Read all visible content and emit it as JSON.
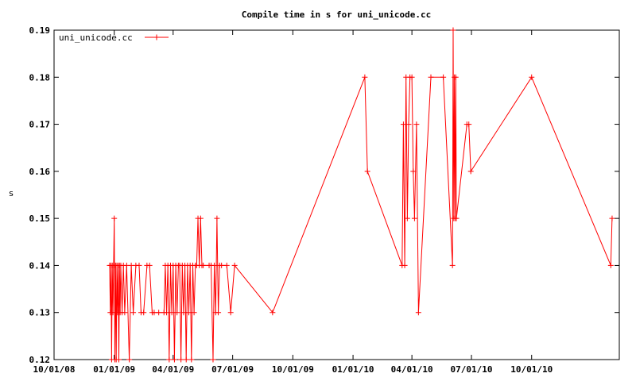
{
  "chart_data": {
    "type": "line",
    "title": "Compile time in s for uni_unicode.cc",
    "xlabel": "",
    "ylabel": "s",
    "x_is_date": true,
    "xlim": [
      "2008-10-01",
      "2011-02-12"
    ],
    "ylim": [
      0.12,
      0.19
    ],
    "yticks": [
      0.12,
      0.13,
      0.14,
      0.15,
      0.16,
      0.17,
      0.18,
      0.19
    ],
    "yticks_labels": [
      "0.12",
      "0.13",
      "0.14",
      "0.15",
      "0.16",
      "0.17",
      "0.18",
      "0.19"
    ],
    "xticks": [
      "2008-10-01",
      "2009-01-01",
      "2009-04-01",
      "2009-07-01",
      "2009-10-01",
      "2010-01-01",
      "2010-04-01",
      "2010-07-01",
      "2010-10-01"
    ],
    "xticks_labels": [
      "10/01/08",
      "01/01/09",
      "04/01/09",
      "07/01/09",
      "10/01/09",
      "01/01/10",
      "04/01/10",
      "07/01/10",
      "10/01/10"
    ],
    "grid": false,
    "legend_position": "top-left",
    "series": [
      {
        "name": "uni_unicode.cc",
        "color": "#ff0000",
        "marker": "plus",
        "points": [
          [
            "2008-12-25",
            0.14
          ],
          [
            "2008-12-26",
            0.13
          ],
          [
            "2008-12-27",
            0.14
          ],
          [
            "2008-12-28",
            0.12
          ],
          [
            "2008-12-29",
            0.14
          ],
          [
            "2008-12-30",
            0.13
          ],
          [
            "2008-12-31",
            0.14
          ],
          [
            "2009-01-01",
            0.15
          ],
          [
            "2009-01-02",
            0.12
          ],
          [
            "2009-01-03",
            0.14
          ],
          [
            "2009-01-04",
            0.12
          ],
          [
            "2009-01-05",
            0.14
          ],
          [
            "2009-01-06",
            0.13
          ],
          [
            "2009-01-07",
            0.14
          ],
          [
            "2009-01-08",
            0.12
          ],
          [
            "2009-01-09",
            0.14
          ],
          [
            "2009-01-10",
            0.13
          ],
          [
            "2009-01-11",
            0.14
          ],
          [
            "2009-01-13",
            0.13
          ],
          [
            "2009-01-15",
            0.14
          ],
          [
            "2009-01-17",
            0.13
          ],
          [
            "2009-01-20",
            0.14
          ],
          [
            "2009-01-24",
            0.12
          ],
          [
            "2009-01-27",
            0.14
          ],
          [
            "2009-01-30",
            0.13
          ],
          [
            "2009-02-03",
            0.14
          ],
          [
            "2009-02-08",
            0.14
          ],
          [
            "2009-02-11",
            0.13
          ],
          [
            "2009-02-15",
            0.13
          ],
          [
            "2009-02-20",
            0.14
          ],
          [
            "2009-02-24",
            0.14
          ],
          [
            "2009-02-28",
            0.13
          ],
          [
            "2009-03-03",
            0.13
          ],
          [
            "2009-03-10",
            0.13
          ],
          [
            "2009-03-18",
            0.13
          ],
          [
            "2009-03-20",
            0.14
          ],
          [
            "2009-03-22",
            0.13
          ],
          [
            "2009-03-24",
            0.14
          ],
          [
            "2009-03-26",
            0.12
          ],
          [
            "2009-03-28",
            0.14
          ],
          [
            "2009-03-30",
            0.13
          ],
          [
            "2009-04-01",
            0.14
          ],
          [
            "2009-04-03",
            0.12
          ],
          [
            "2009-04-05",
            0.14
          ],
          [
            "2009-04-07",
            0.13
          ],
          [
            "2009-04-09",
            0.14
          ],
          [
            "2009-04-11",
            0.14
          ],
          [
            "2009-04-13",
            0.12
          ],
          [
            "2009-04-15",
            0.14
          ],
          [
            "2009-04-17",
            0.13
          ],
          [
            "2009-04-19",
            0.14
          ],
          [
            "2009-04-21",
            0.12
          ],
          [
            "2009-04-23",
            0.14
          ],
          [
            "2009-04-25",
            0.13
          ],
          [
            "2009-04-27",
            0.14
          ],
          [
            "2009-04-29",
            0.12
          ],
          [
            "2009-05-01",
            0.14
          ],
          [
            "2009-05-03",
            0.13
          ],
          [
            "2009-05-05",
            0.14
          ],
          [
            "2009-05-07",
            0.14
          ],
          [
            "2009-05-09",
            0.15
          ],
          [
            "2009-05-11",
            0.14
          ],
          [
            "2009-05-13",
            0.15
          ],
          [
            "2009-05-15",
            0.14
          ],
          [
            "2009-05-17",
            0.14
          ],
          [
            "2009-05-26",
            0.14
          ],
          [
            "2009-05-29",
            0.14
          ],
          [
            "2009-06-01",
            0.12
          ],
          [
            "2009-06-03",
            0.14
          ],
          [
            "2009-06-05",
            0.13
          ],
          [
            "2009-06-07",
            0.15
          ],
          [
            "2009-06-09",
            0.13
          ],
          [
            "2009-06-11",
            0.14
          ],
          [
            "2009-06-14",
            0.14
          ],
          [
            "2009-06-22",
            0.14
          ],
          [
            "2009-06-28",
            0.13
          ],
          [
            "2009-07-04",
            0.14
          ],
          [
            "2009-08-31",
            0.13
          ],
          [
            "2010-01-19",
            0.18
          ],
          [
            "2010-01-23",
            0.16
          ],
          [
            "2010-03-17",
            0.14
          ],
          [
            "2010-03-19",
            0.17
          ],
          [
            "2010-03-21",
            0.14
          ],
          [
            "2010-03-23",
            0.18
          ],
          [
            "2010-03-25",
            0.15
          ],
          [
            "2010-03-27",
            0.17
          ],
          [
            "2010-03-29",
            0.18
          ],
          [
            "2010-04-01",
            0.18
          ],
          [
            "2010-04-03",
            0.16
          ],
          [
            "2010-04-05",
            0.15
          ],
          [
            "2010-04-08",
            0.17
          ],
          [
            "2010-04-11",
            0.13
          ],
          [
            "2010-04-30",
            0.18
          ],
          [
            "2010-05-19",
            0.18
          ],
          [
            "2010-06-02",
            0.14
          ],
          [
            "2010-06-03",
            0.19
          ],
          [
            "2010-06-04",
            0.15
          ],
          [
            "2010-06-05",
            0.18
          ],
          [
            "2010-06-06",
            0.15
          ],
          [
            "2010-06-07",
            0.18
          ],
          [
            "2010-06-08",
            0.15
          ],
          [
            "2010-06-24",
            0.17
          ],
          [
            "2010-06-27",
            0.17
          ],
          [
            "2010-06-30",
            0.16
          ],
          [
            "2010-10-01",
            0.18
          ],
          [
            "2011-01-30",
            0.14
          ],
          [
            "2011-02-01",
            0.15
          ]
        ]
      }
    ]
  }
}
